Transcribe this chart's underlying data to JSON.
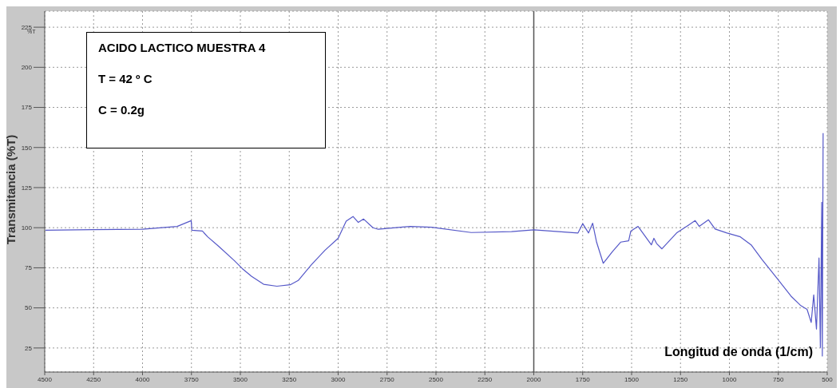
{
  "chart_data": {
    "type": "line",
    "xlabel": "Longitud de onda (1/cm)",
    "ylabel": "Transmitancia (%T)",
    "annotations": [
      "ACIDO LACTICO MUESTRA 4",
      "T = 42 º C",
      "C = 0.2g",
      "%T"
    ],
    "x": [
      4497,
      4252,
      4000,
      3823,
      3751,
      3748,
      3694,
      3667,
      3612,
      3531,
      3490,
      3442,
      3381,
      3313,
      3245,
      3204,
      3136,
      3067,
      3000,
      2959,
      2924,
      2897,
      2870,
      2822,
      2795,
      2632,
      2523,
      2320,
      2114,
      2000,
      1774,
      1750,
      1720,
      1699,
      1679,
      1645,
      1597,
      1556,
      1515,
      1504,
      1467,
      1433,
      1399,
      1386,
      1372,
      1345,
      1270,
      1209,
      1175,
      1154,
      1107,
      1073,
      1012,
      944,
      889,
      834,
      759,
      685,
      637,
      603,
      582,
      569,
      555,
      542,
      535,
      528,
      525,
      521
    ],
    "series": [
      {
        "color": "#5558c8",
        "values": [
          98.4,
          98.8,
          99,
          100.8,
          104.4,
          98.4,
          97.9,
          94.3,
          88.5,
          79.5,
          74.5,
          69.6,
          64.7,
          63.5,
          64.4,
          67.1,
          77,
          86,
          93.4,
          104.1,
          107,
          103.3,
          105.4,
          100,
          99,
          100.8,
          100.3,
          97,
          97.5,
          98.7,
          96.7,
          102.5,
          96.7,
          102.8,
          91,
          77.8,
          85.2,
          91,
          91.8,
          97.9,
          100.8,
          95.1,
          89.3,
          93.4,
          90.1,
          86.8,
          96.7,
          101.6,
          104.4,
          100.8,
          104.9,
          99.2,
          96.7,
          94.3,
          89.3,
          80.3,
          68.8,
          57.3,
          51.6,
          49.1,
          40.9,
          58.1,
          36.8,
          81.1,
          25.3,
          115.8,
          20,
          159
        ]
      }
    ],
    "xlim": [
      4500,
      500
    ],
    "xticks": [
      4500,
      4250,
      4000,
      3750,
      3500,
      3250,
      3000,
      2750,
      2500,
      2250,
      2000,
      1750,
      1500,
      1250,
      1000,
      750,
      500
    ],
    "ylim": [
      10,
      235
    ],
    "yticks": [
      25,
      50,
      75,
      100,
      125,
      150,
      175,
      200,
      225
    ],
    "ref_lines": [
      {
        "axis": "x",
        "value": 2000,
        "color": "#555555"
      }
    ],
    "grid": true,
    "marker": "none",
    "line_style": "solid",
    "legend": false
  }
}
